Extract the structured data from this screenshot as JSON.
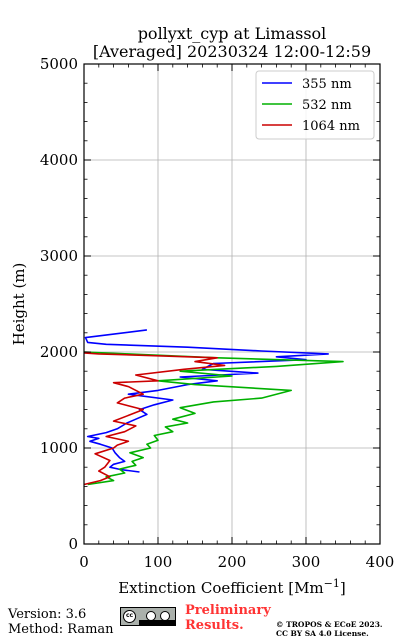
{
  "chart_data": {
    "type": "line",
    "title": "pollyxt_cyp at Limassol",
    "subtitle": "[Averaged] 20230324 12:00-12:59",
    "xlabel": "Extinction Coefficient [Mm",
    "xlabel_superscript": "−1",
    "xlabel_suffix": "]",
    "ylabel": "Height (m)",
    "xlim": [
      0,
      400
    ],
    "ylim": [
      0,
      5000
    ],
    "xticks": [
      "0",
      "100",
      "200",
      "300",
      "400"
    ],
    "yticks": [
      "0",
      "1000",
      "2000",
      "3000",
      "4000",
      "5000"
    ],
    "grid": true,
    "legend_position": "top-right",
    "series": [
      {
        "name": "355 nm",
        "color": "#0000ff",
        "points": [
          [
            75,
            750
          ],
          [
            50,
            775
          ],
          [
            35,
            800
          ],
          [
            40,
            830
          ],
          [
            55,
            860
          ],
          [
            48,
            900
          ],
          [
            42,
            950
          ],
          [
            38,
            1000
          ],
          [
            22,
            1040
          ],
          [
            8,
            1070
          ],
          [
            20,
            1100
          ],
          [
            5,
            1120
          ],
          [
            30,
            1160
          ],
          [
            45,
            1200
          ],
          [
            58,
            1260
          ],
          [
            70,
            1300
          ],
          [
            85,
            1350
          ],
          [
            75,
            1400
          ],
          [
            95,
            1450
          ],
          [
            120,
            1500
          ],
          [
            60,
            1560
          ],
          [
            100,
            1600
          ],
          [
            140,
            1660
          ],
          [
            180,
            1700
          ],
          [
            130,
            1740
          ],
          [
            235,
            1780
          ],
          [
            160,
            1820
          ],
          [
            175,
            1880
          ],
          [
            300,
            1920
          ],
          [
            260,
            1950
          ],
          [
            330,
            1980
          ],
          [
            240,
            2010
          ],
          [
            140,
            2050
          ],
          [
            30,
            2080
          ],
          [
            5,
            2100
          ],
          [
            2,
            2150
          ],
          [
            85,
            2230
          ]
        ]
      },
      {
        "name": "532 nm",
        "color": "#00b000",
        "points": [
          [
            5,
            620
          ],
          [
            40,
            660
          ],
          [
            30,
            700
          ],
          [
            55,
            740
          ],
          [
            48,
            780
          ],
          [
            70,
            820
          ],
          [
            65,
            860
          ],
          [
            80,
            900
          ],
          [
            62,
            950
          ],
          [
            90,
            1000
          ],
          [
            85,
            1040
          ],
          [
            100,
            1080
          ],
          [
            95,
            1130
          ],
          [
            120,
            1170
          ],
          [
            110,
            1220
          ],
          [
            140,
            1260
          ],
          [
            120,
            1300
          ],
          [
            150,
            1360
          ],
          [
            130,
            1420
          ],
          [
            175,
            1480
          ],
          [
            240,
            1520
          ],
          [
            280,
            1600
          ],
          [
            150,
            1660
          ],
          [
            100,
            1700
          ],
          [
            200,
            1750
          ],
          [
            130,
            1800
          ],
          [
            260,
            1850
          ],
          [
            350,
            1900
          ],
          [
            180,
            1940
          ],
          [
            60,
            1980
          ],
          [
            0,
            2000
          ]
        ]
      },
      {
        "name": "1064 nm",
        "color": "#cc0000",
        "points": [
          [
            0,
            620
          ],
          [
            22,
            660
          ],
          [
            35,
            700
          ],
          [
            20,
            760
          ],
          [
            28,
            800
          ],
          [
            35,
            870
          ],
          [
            15,
            940
          ],
          [
            40,
            1000
          ],
          [
            45,
            1030
          ],
          [
            60,
            1070
          ],
          [
            30,
            1120
          ],
          [
            55,
            1170
          ],
          [
            70,
            1230
          ],
          [
            40,
            1280
          ],
          [
            60,
            1340
          ],
          [
            80,
            1400
          ],
          [
            45,
            1470
          ],
          [
            55,
            1520
          ],
          [
            80,
            1560
          ],
          [
            60,
            1640
          ],
          [
            40,
            1680
          ],
          [
            100,
            1700
          ],
          [
            70,
            1760
          ],
          [
            135,
            1820
          ],
          [
            190,
            1860
          ],
          [
            150,
            1900
          ],
          [
            180,
            1940
          ],
          [
            100,
            1960
          ],
          [
            20,
            1980
          ],
          [
            0,
            1990
          ]
        ]
      }
    ]
  },
  "footer": {
    "version": "Version: 3.6",
    "method": "Method: Raman",
    "preliminary_line1": "Preliminary",
    "preliminary_line2": "Results.",
    "copyright_line1": "© TROPOS & ECoE 2023.",
    "copyright_line2": "CC BY SA 4.0 License.",
    "license_badge": "cc-by-sa-icon"
  }
}
